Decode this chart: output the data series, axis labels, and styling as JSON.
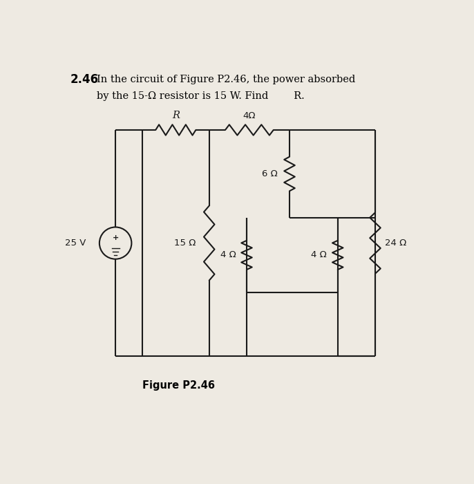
{
  "bg_color": "#eeeae2",
  "title_bold": "2.46",
  "title_rest": "  In the circuit of Figure P2.46, the power absorbed",
  "title_line2": "      by the 15-Ω resistor is 15 W. Find  R.",
  "figure_label": "Figure P2.46",
  "voltage_label": "25 V",
  "label_R": "R",
  "label_4top": "4Ω",
  "label_15": "15 Ω",
  "label_6": "6 Ω",
  "label_4bl": "4 Ω",
  "label_4br": "4 Ω",
  "label_24": "24 Ω",
  "lc": "#1a1a1a",
  "lw": 1.5
}
